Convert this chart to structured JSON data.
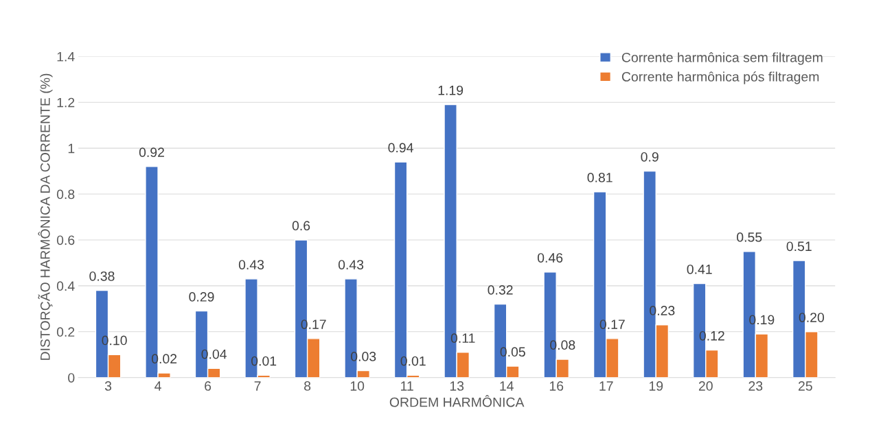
{
  "chart_data": {
    "type": "bar",
    "xlabel": "ORDEM HARMÔNICA",
    "ylabel": "DISTORÇÃO HARMÔNICA DA CORRENTE (%)",
    "categories": [
      "3",
      "4",
      "6",
      "7",
      "8",
      "10",
      "11",
      "13",
      "14",
      "16",
      "17",
      "19",
      "20",
      "23",
      "25"
    ],
    "series": [
      {
        "name": "Corrente harmônica sem filtragem",
        "color": "#4472c4",
        "values": [
          0.38,
          0.92,
          0.29,
          0.43,
          0.6,
          0.43,
          0.94,
          1.19,
          0.32,
          0.46,
          0.81,
          0.9,
          0.41,
          0.55,
          0.51
        ],
        "value_labels": [
          "0.38",
          "0.92",
          "0.29",
          "0.43",
          "0.6",
          "0.43",
          "0.94",
          "1.19",
          "0.32",
          "0.46",
          "0.81",
          "0.9",
          "0.41",
          "0.55",
          "0.51"
        ]
      },
      {
        "name": "Corrente harmônica pós filtragem",
        "color": "#ed7d31",
        "values": [
          0.1,
          0.02,
          0.04,
          0.01,
          0.17,
          0.03,
          0.01,
          0.11,
          0.05,
          0.08,
          0.17,
          0.23,
          0.12,
          0.19,
          0.2
        ],
        "value_labels": [
          "0.10",
          "0.02",
          "0.04",
          "0.01",
          "0.17",
          "0.03",
          "0.01",
          "0.11",
          "0.05",
          "0.08",
          "0.17",
          "0.23",
          "0.12",
          "0.19",
          "0.20"
        ]
      }
    ],
    "ylim": [
      0,
      1.4
    ],
    "yticks": [
      0,
      0.2,
      0.4,
      0.6,
      0.8,
      1,
      1.2,
      1.4
    ],
    "grid": "y",
    "legend": "top right"
  }
}
